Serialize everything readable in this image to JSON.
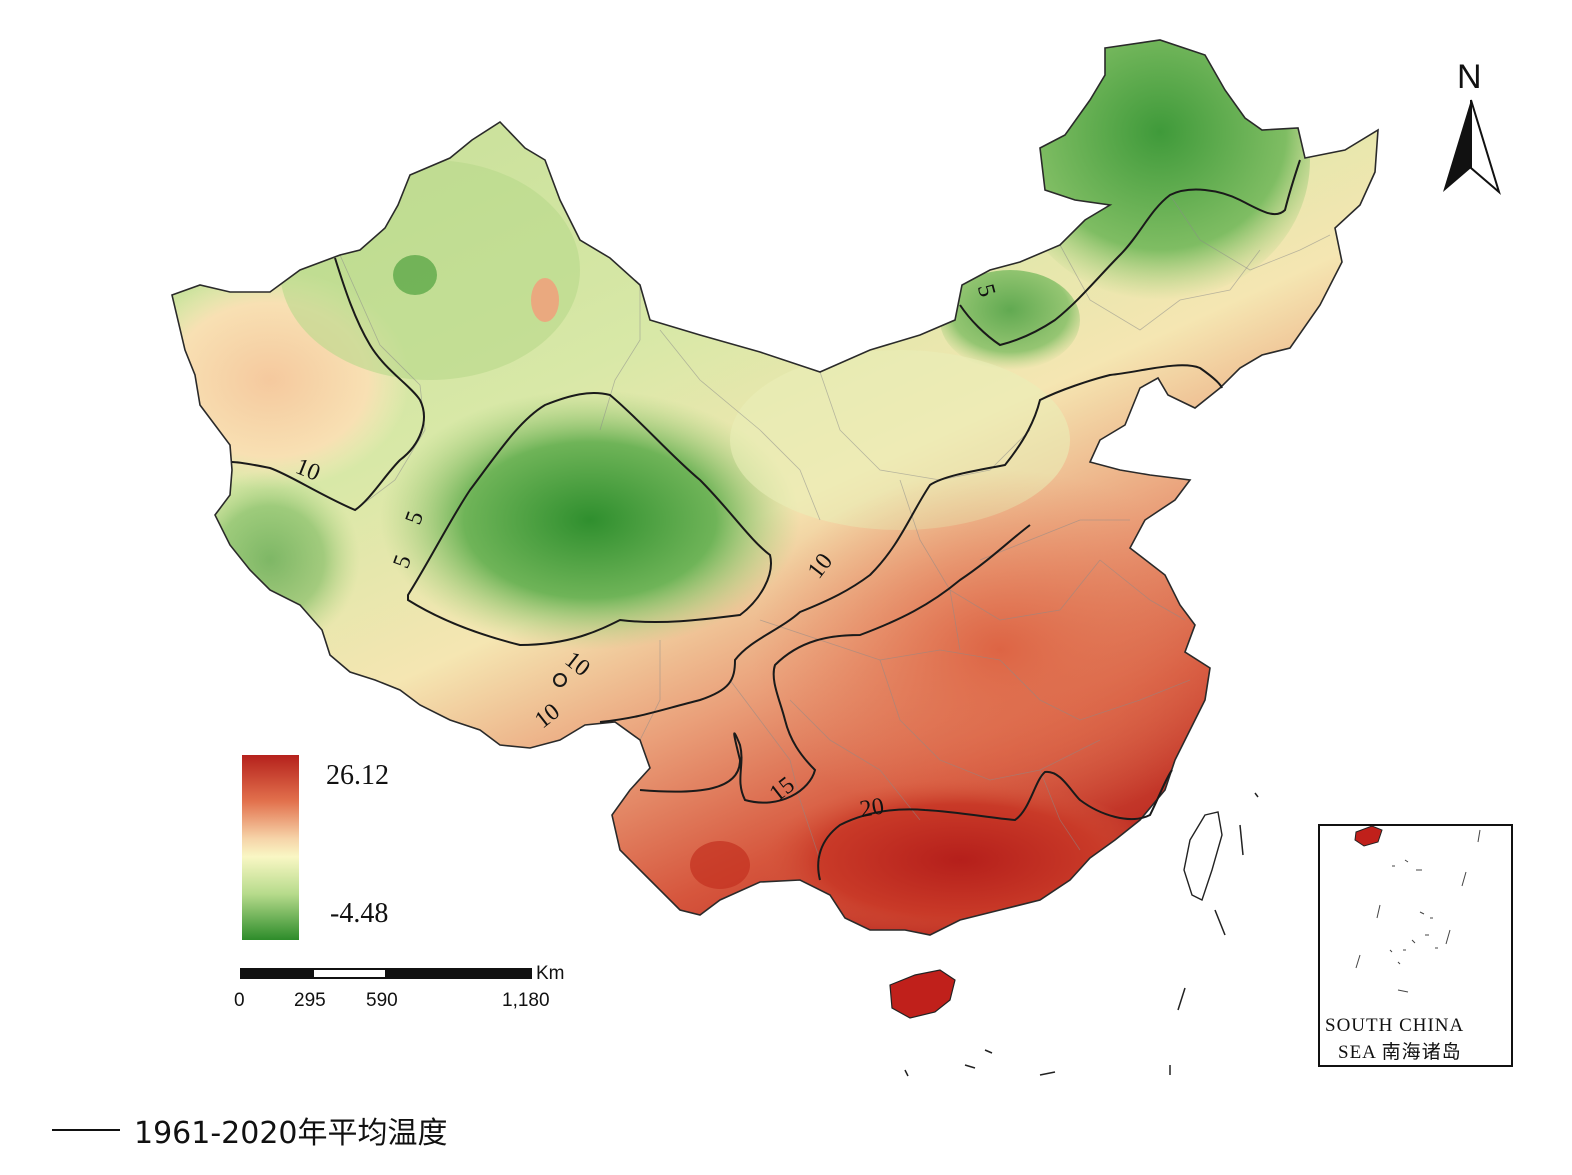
{
  "legend": {
    "max_value": "26.12",
    "min_value": "-4.48",
    "color_ramp": [
      "#b5211c",
      "#e2714d",
      "#f6d3a8",
      "#f9f7c4",
      "#b7db8c",
      "#2d8c2a"
    ]
  },
  "contour_labels": [
    "10",
    "5",
    "5",
    "10",
    "10",
    "10",
    "15",
    "20",
    "5"
  ],
  "scale_bar": {
    "unit": "Km",
    "ticks": [
      "0",
      "295",
      "590",
      "1,180"
    ]
  },
  "north_arrow": {
    "label": "N",
    "icon": "north-arrow-icon"
  },
  "inset": {
    "line1": "SOUTH CHINA",
    "line2": "SEA 南海诸岛"
  },
  "footer_legend": {
    "label": "1961-2020年平均温度"
  }
}
